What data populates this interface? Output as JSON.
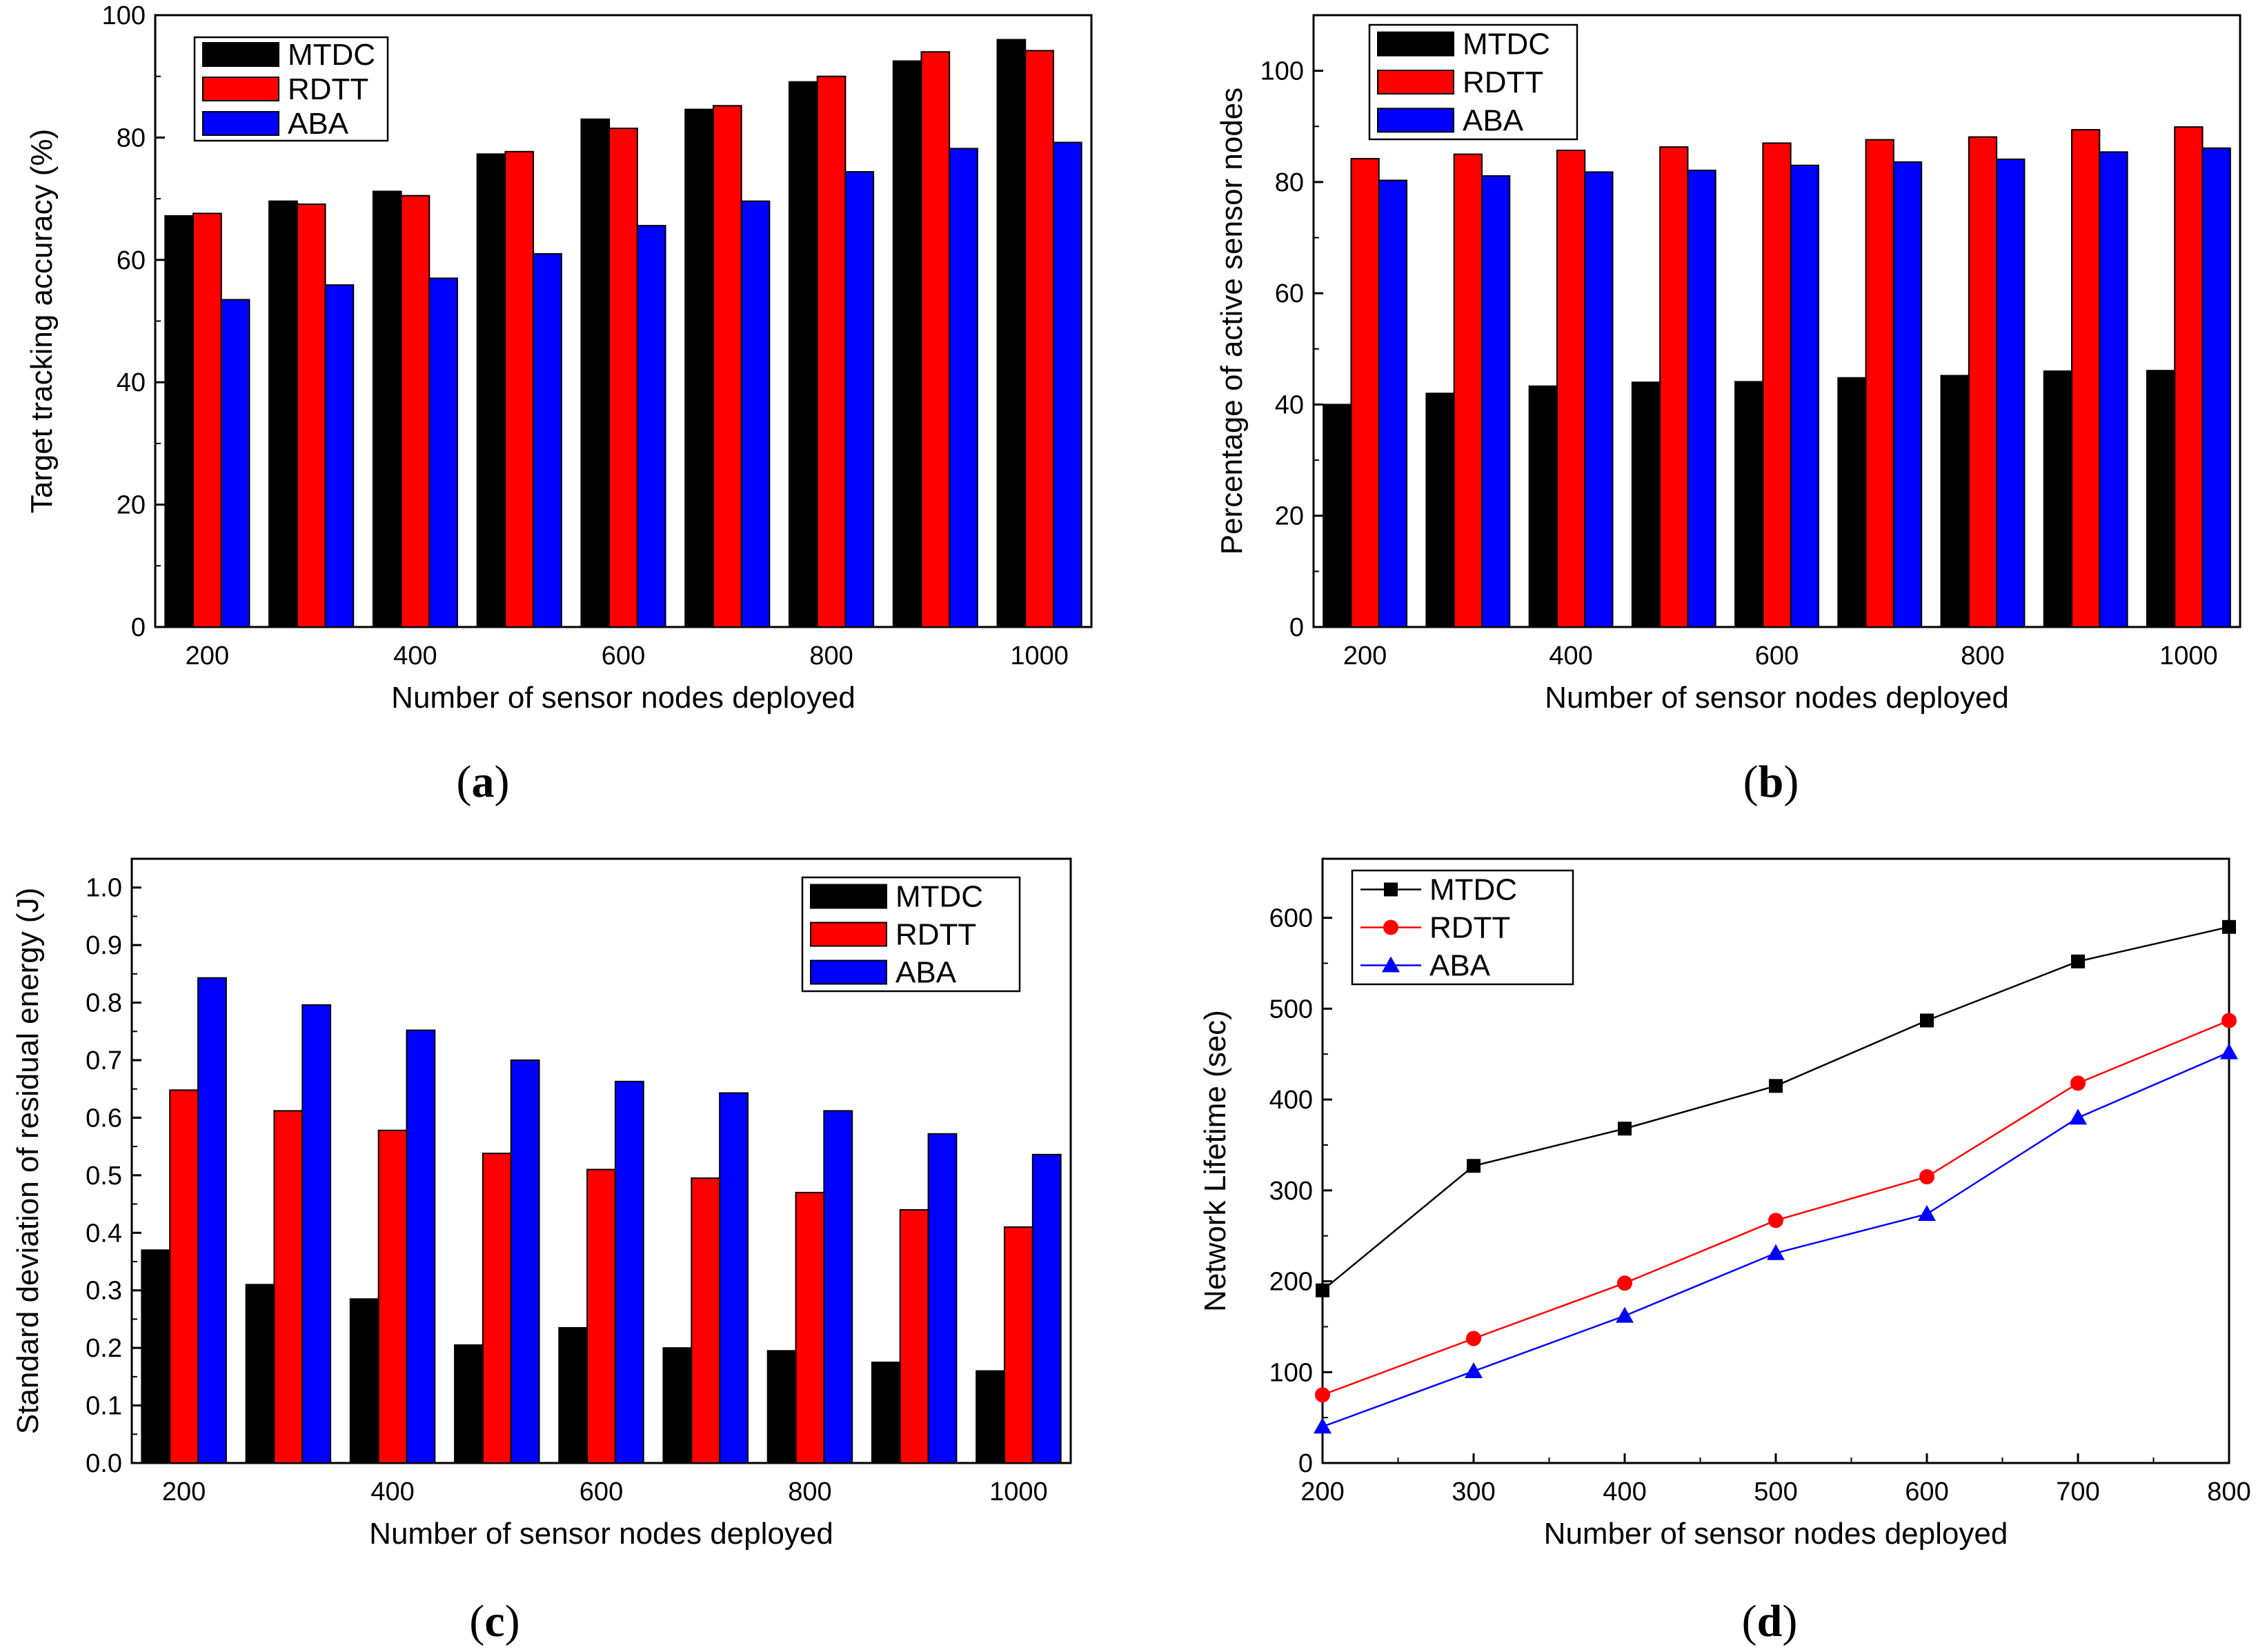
{
  "colors": {
    "MTDC": "#000000",
    "RDTT": "#ff0000",
    "ABA": "#0000ff",
    "axis": "#000000",
    "background": "#ffffff"
  },
  "chart_data": [
    {
      "id": "a",
      "type": "bar",
      "caption": "(a)",
      "caption_letter": "a",
      "xlabel": "Number of sensor nodes deployed",
      "ylabel": "Target tracking accuracy (%)",
      "x": [
        200,
        300,
        400,
        500,
        600,
        700,
        800,
        900,
        1000
      ],
      "xticks": [
        "200",
        "400",
        "600",
        "800",
        "1000"
      ],
      "ylim": [
        0,
        100
      ],
      "yticks": [
        "0",
        "20",
        "40",
        "60",
        "80",
        "100"
      ],
      "legend_position": "top-left",
      "series": [
        {
          "name": "MTDC",
          "values": [
            67.2,
            69.6,
            71.2,
            77.3,
            83.0,
            84.6,
            89.1,
            92.5,
            96.0
          ]
        },
        {
          "name": "RDTT",
          "values": [
            67.6,
            69.1,
            70.5,
            77.7,
            81.5,
            85.2,
            90.0,
            94.0,
            94.2
          ]
        },
        {
          "name": "ABA",
          "values": [
            53.5,
            55.9,
            57.0,
            61.0,
            65.6,
            69.6,
            74.4,
            78.2,
            79.2
          ]
        }
      ]
    },
    {
      "id": "b",
      "type": "bar",
      "caption": "(b)",
      "caption_letter": "b",
      "xlabel": "Number of sensor nodes deployed",
      "ylabel": "Percentage of active sensor nodes",
      "x": [
        200,
        300,
        400,
        500,
        600,
        700,
        800,
        900,
        1000
      ],
      "xticks": [
        "200",
        "400",
        "600",
        "800",
        "1000"
      ],
      "ylim": [
        0,
        110
      ],
      "yticks": [
        "0",
        "20",
        "40",
        "60",
        "80",
        "100"
      ],
      "legend_position": "top-left",
      "series": [
        {
          "name": "MTDC",
          "values": [
            40.0,
            42.0,
            43.3,
            44.0,
            44.1,
            44.8,
            45.2,
            46.0,
            46.1
          ]
        },
        {
          "name": "RDTT",
          "values": [
            84.2,
            85.0,
            85.7,
            86.3,
            87.0,
            87.6,
            88.1,
            89.4,
            89.9
          ]
        },
        {
          "name": "ABA",
          "values": [
            80.3,
            81.1,
            81.8,
            82.1,
            83.0,
            83.6,
            84.1,
            85.4,
            86.1
          ]
        }
      ]
    },
    {
      "id": "c",
      "type": "bar",
      "caption": "(c)",
      "caption_letter": "c",
      "xlabel": "Number of sensor nodes deployed",
      "ylabel": "Standard deviation of residual energy (J)",
      "x": [
        200,
        300,
        400,
        500,
        600,
        700,
        800,
        900,
        1000
      ],
      "xticks": [
        "200",
        "400",
        "600",
        "800",
        "1000"
      ],
      "ylim": [
        0,
        1.05
      ],
      "yticks": [
        "0.0",
        "0.1",
        "0.2",
        "0.3",
        "0.4",
        "0.5",
        "0.6",
        "0.7",
        "0.8",
        "0.9",
        "1.0"
      ],
      "legend_position": "top-right",
      "series": [
        {
          "name": "MTDC",
          "values": [
            0.37,
            0.31,
            0.285,
            0.205,
            0.235,
            0.2,
            0.195,
            0.175,
            0.16
          ]
        },
        {
          "name": "RDTT",
          "values": [
            0.648,
            0.612,
            0.578,
            0.538,
            0.51,
            0.495,
            0.47,
            0.44,
            0.41
          ]
        },
        {
          "name": "ABA",
          "values": [
            0.843,
            0.796,
            0.752,
            0.7,
            0.663,
            0.643,
            0.612,
            0.572,
            0.536
          ]
        }
      ]
    },
    {
      "id": "d",
      "type": "line",
      "caption": "(d)",
      "caption_letter": "d",
      "xlabel": "Number of sensor nodes deployed",
      "ylabel": "Network Lifetime (sec)",
      "x": [
        200,
        300,
        400,
        500,
        600,
        700,
        800
      ],
      "xticks": [
        "200",
        "300",
        "400",
        "500",
        "600",
        "700",
        "800"
      ],
      "xlim": [
        200,
        800
      ],
      "ylim": [
        0,
        665
      ],
      "yticks": [
        "0",
        "100",
        "200",
        "300",
        "400",
        "500",
        "600"
      ],
      "legend_position": "top-left",
      "series": [
        {
          "name": "MTDC",
          "marker": "square",
          "values": [
            190,
            327,
            368,
            415,
            487,
            552,
            590
          ]
        },
        {
          "name": "RDTT",
          "marker": "circle",
          "values": [
            75,
            137,
            198,
            267,
            315,
            418,
            487
          ]
        },
        {
          "name": "ABA",
          "marker": "triangle",
          "values": [
            40,
            101,
            162,
            231,
            274,
            380,
            452
          ]
        }
      ]
    }
  ]
}
